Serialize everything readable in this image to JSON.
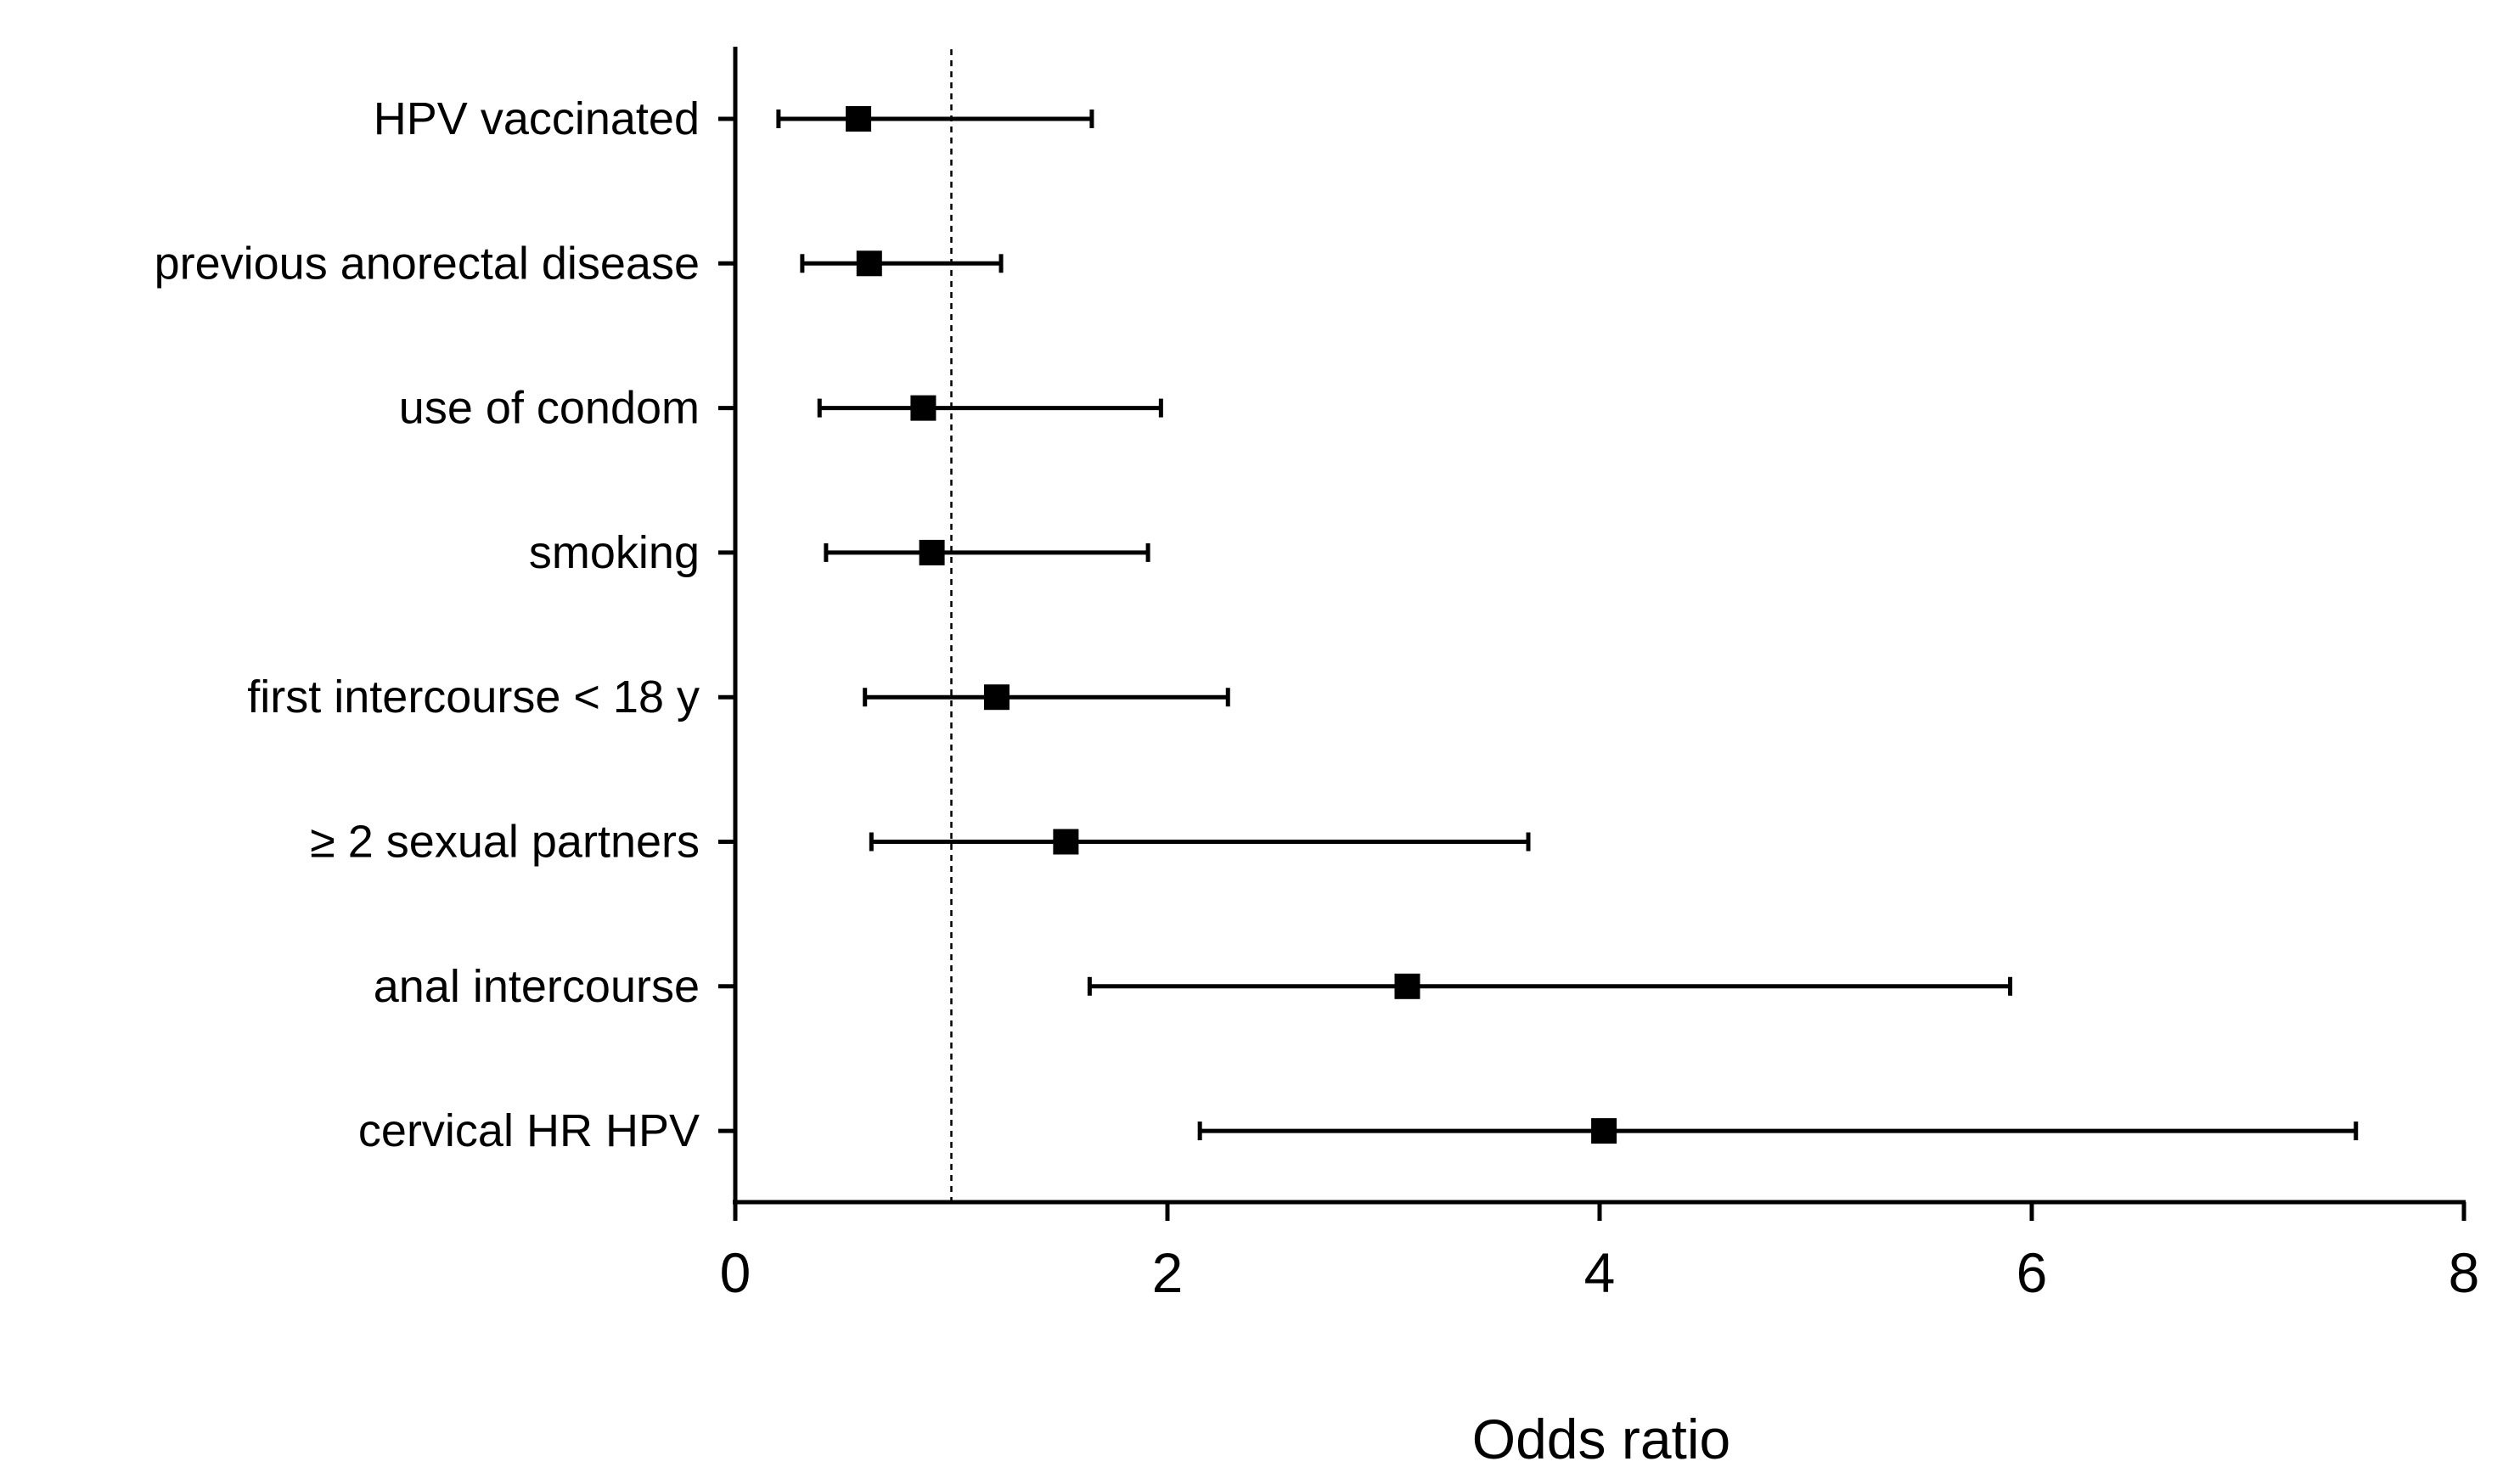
{
  "chart_data": {
    "type": "forest",
    "title": "",
    "xlabel": "Odds ratio",
    "ylabel": "",
    "xlim": [
      0,
      8
    ],
    "xticks": [
      0,
      2,
      4,
      6,
      8
    ],
    "xtick_labels": [
      "0",
      "2",
      "4",
      "6",
      "8"
    ],
    "reference_line": 1,
    "grid": false,
    "categories": [
      "HPV vaccinated",
      "previous anorectal disease",
      "use of condom",
      "smoking",
      "first intercourse < 18 y",
      "≥ 2 sexual partners",
      "anal intercourse",
      "cervical HR HPV"
    ],
    "estimates": [
      0.57,
      0.62,
      0.87,
      0.91,
      1.21,
      1.53,
      3.11,
      4.02
    ],
    "ci_lower": [
      0.2,
      0.31,
      0.39,
      0.42,
      0.6,
      0.63,
      1.64,
      2.15
    ],
    "ci_upper": [
      1.65,
      1.23,
      1.97,
      1.91,
      2.28,
      3.67,
      5.9,
      7.5
    ]
  }
}
